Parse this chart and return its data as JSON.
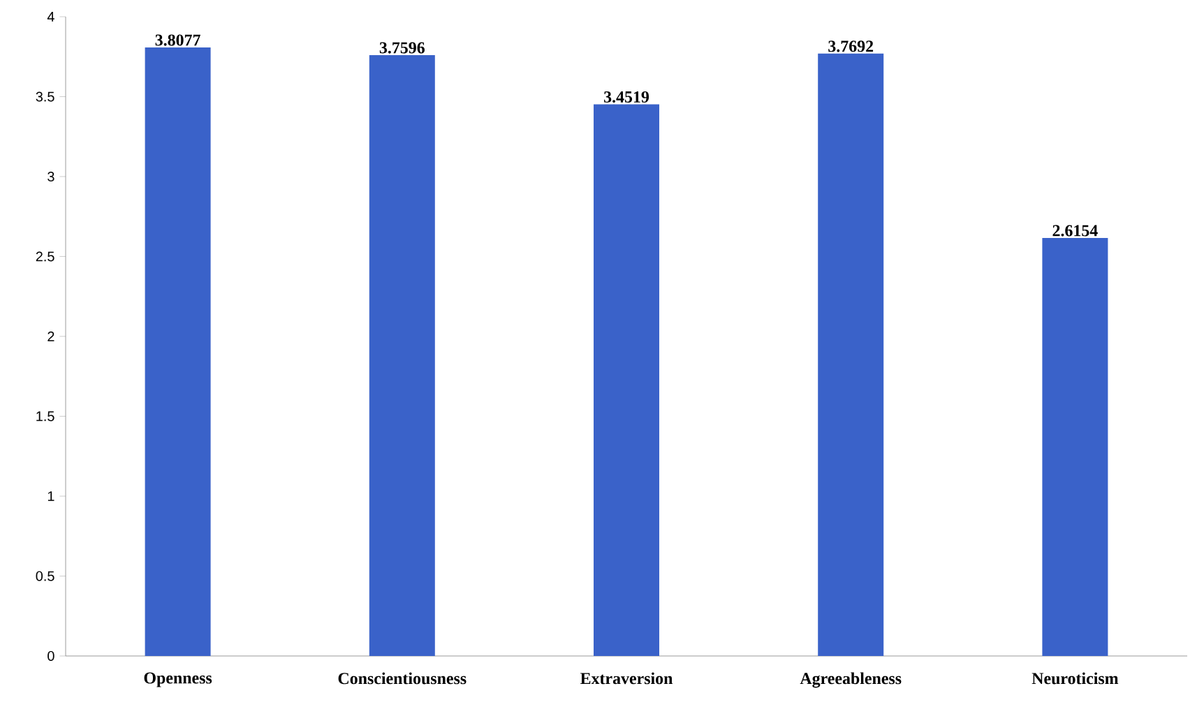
{
  "chart_data": {
    "type": "bar",
    "categories": [
      "Openness",
      "Conscientiousness",
      "Extraversion",
      "Agreeableness",
      "Neuroticism"
    ],
    "values": [
      3.8077,
      3.7596,
      3.4519,
      3.7692,
      2.6154
    ],
    "color": "#3a62c9",
    "ylim": [
      0,
      4
    ],
    "yticks": [
      0,
      0.5,
      1,
      1.5,
      2,
      2.5,
      3,
      3.5,
      4
    ],
    "data_labels": true,
    "grid": false
  }
}
